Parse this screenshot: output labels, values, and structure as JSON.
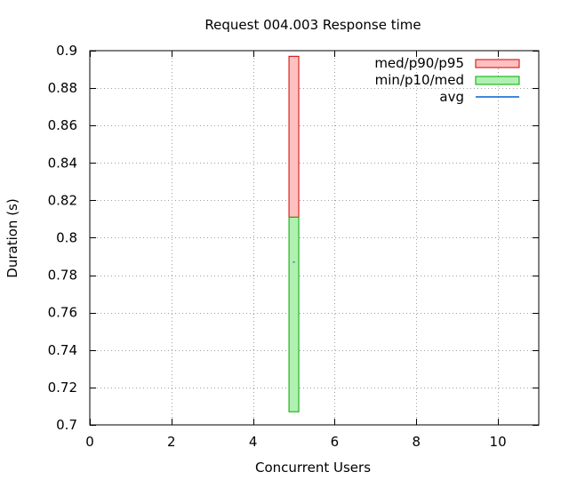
{
  "chart_data": {
    "type": "candlestick",
    "title": "Request 004.003 Response time",
    "xlabel": "Concurrent Users",
    "ylabel": "Duration (s)",
    "xlim": [
      0,
      11
    ],
    "ylim": [
      0.7,
      0.9
    ],
    "x_ticks": [
      0,
      2,
      4,
      6,
      8,
      10
    ],
    "y_ticks": [
      0.7,
      0.72,
      0.74,
      0.76,
      0.78,
      0.8,
      0.82,
      0.84,
      0.86,
      0.88,
      0.9
    ],
    "y_tick_labels": [
      "0.7",
      "0.72",
      "0.74",
      "0.76",
      "0.78",
      "0.8",
      "0.82",
      "0.84",
      "0.86",
      "0.88",
      "0.9"
    ],
    "grid": true,
    "legend_position": "top-right",
    "series": [
      {
        "name": "med/p90/p95",
        "color": "#ffc0c0",
        "edge_color": "#cc0000",
        "points": [
          {
            "x": 5,
            "low": 0.811,
            "high": 0.897
          }
        ]
      },
      {
        "name": "min/p10/med",
        "color": "#b0f0b0",
        "edge_color": "#00aa00",
        "points": [
          {
            "x": 5,
            "low": 0.707,
            "high": 0.811
          }
        ]
      },
      {
        "name": "avg",
        "color": "#0060d0",
        "points": [
          {
            "x": 5,
            "y": 0.787
          }
        ]
      }
    ]
  }
}
